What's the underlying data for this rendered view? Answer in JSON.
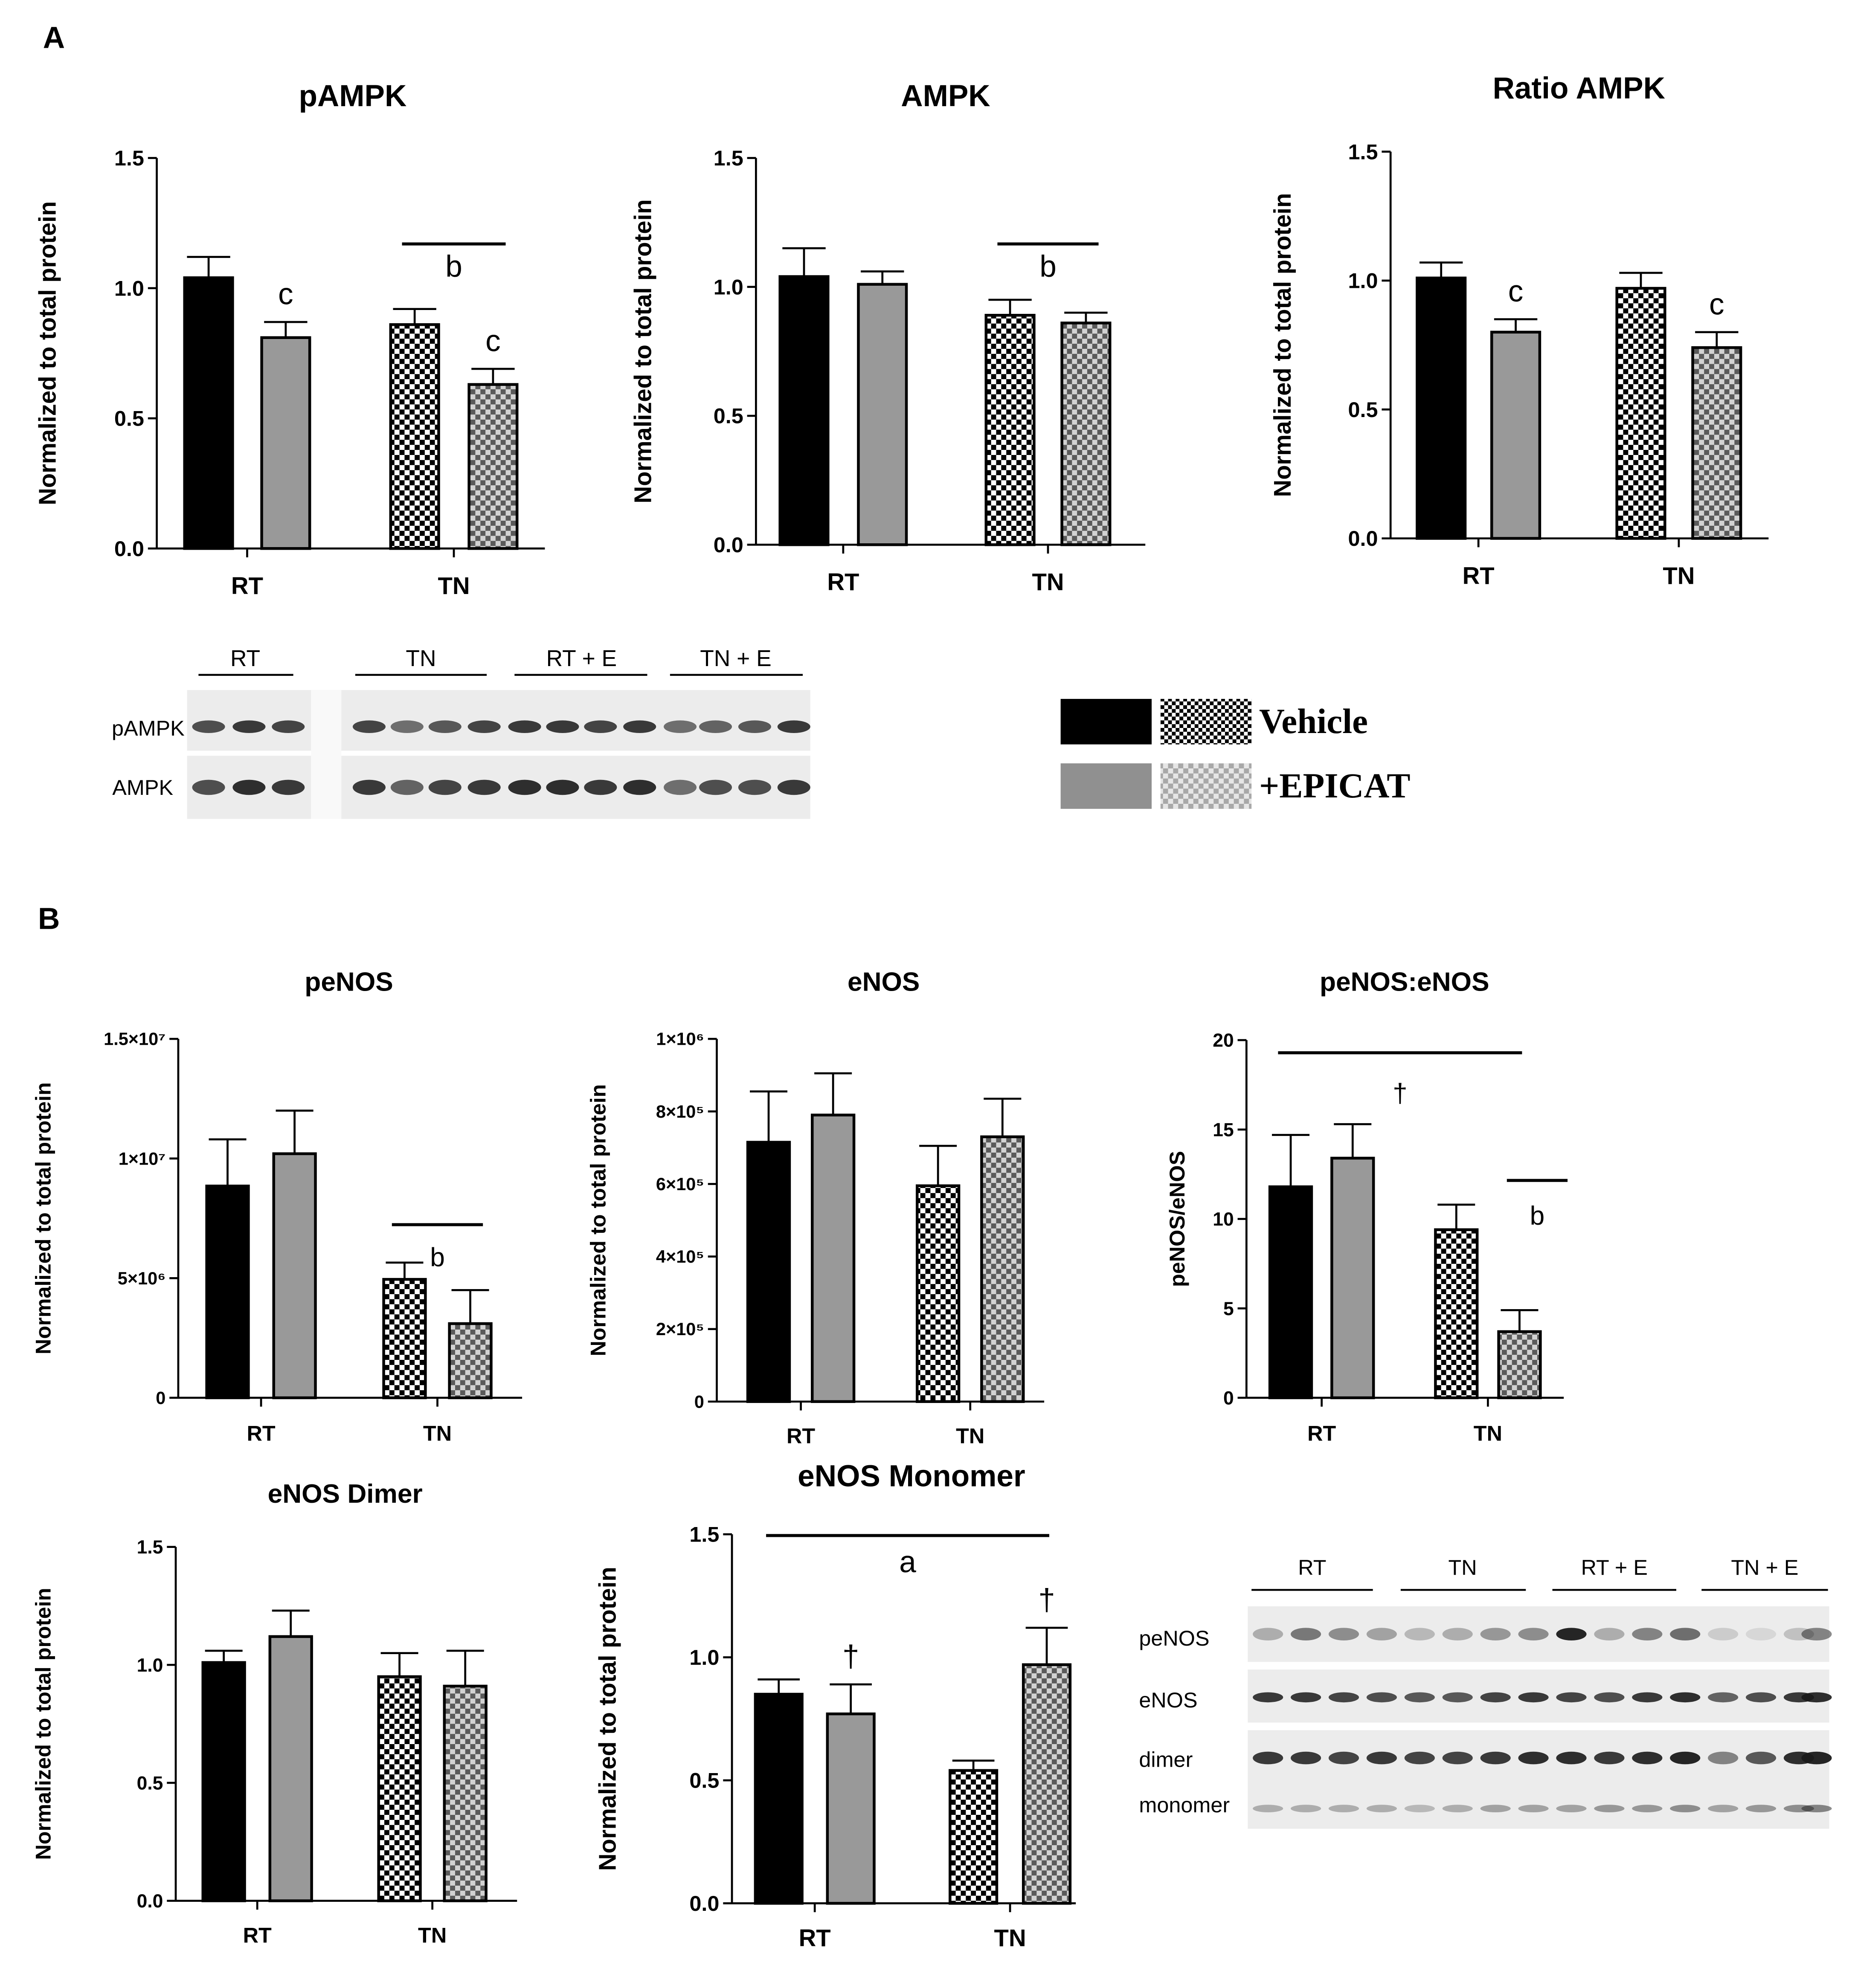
{
  "figure": {
    "panel_labels": [
      "A",
      "B"
    ],
    "legend": {
      "vehicle_label": "Vehicle",
      "epicat_label": "+EPICAT",
      "colors": {
        "vehicle": "#000000",
        "epicat": "#909090"
      }
    },
    "blot_a": {
      "groups": [
        "RT",
        "TN",
        "RT + E",
        "TN + E"
      ],
      "row_labels": [
        "pAMPK",
        "AMPK"
      ]
    },
    "blot_b": {
      "groups": [
        "RT",
        "TN",
        "RT + E",
        "TN + E"
      ],
      "row_labels": [
        "peNOS",
        "eNOS",
        "dimer",
        "monomer"
      ]
    }
  },
  "chart_data": [
    {
      "id": "pampk",
      "type": "bar",
      "title": "pAMPK",
      "ylabel": "Normalized to total protein",
      "ylim": [
        0,
        1.5
      ],
      "yticks": [
        "0.0",
        "0.5",
        "1.0",
        "1.5"
      ],
      "ytick_values": [
        0,
        0.5,
        1.0,
        1.5
      ],
      "categories": [
        "RT",
        "TN"
      ],
      "series": [
        {
          "name": "Vehicle",
          "values": [
            1.04,
            0.86
          ],
          "errors": [
            0.08,
            0.06
          ]
        },
        {
          "name": "+EPICAT",
          "values": [
            0.81,
            0.63
          ],
          "errors": [
            0.06,
            0.06
          ]
        }
      ],
      "bar_letters": [
        {
          "text": "c",
          "series": 1,
          "category": 0
        },
        {
          "text": "c",
          "series": 1,
          "category": 1
        }
      ],
      "annotations": [
        {
          "text": "b",
          "from_category": 1,
          "to_category": 1
        }
      ]
    },
    {
      "id": "ampk",
      "type": "bar",
      "title": "AMPK",
      "ylabel": "Normalized to total protein",
      "ylim": [
        0,
        1.5
      ],
      "yticks": [
        "0.0",
        "0.5",
        "1.0",
        "1.5"
      ],
      "ytick_values": [
        0,
        0.5,
        1.0,
        1.5
      ],
      "categories": [
        "RT",
        "TN"
      ],
      "series": [
        {
          "name": "Vehicle",
          "values": [
            1.04,
            0.89
          ],
          "errors": [
            0.11,
            0.06
          ]
        },
        {
          "name": "+EPICAT",
          "values": [
            1.01,
            0.86
          ],
          "errors": [
            0.05,
            0.04
          ]
        }
      ],
      "bar_letters": [],
      "annotations": [
        {
          "text": "b",
          "from_category": 1,
          "to_category": 1
        }
      ]
    },
    {
      "id": "ratio_ampk",
      "type": "bar",
      "title": "Ratio AMPK",
      "ylabel": "Normalized to total protein",
      "ylim": [
        0,
        1.5
      ],
      "yticks": [
        "0.0",
        "0.5",
        "1.0",
        "1.5"
      ],
      "ytick_values": [
        0,
        0.5,
        1.0,
        1.5
      ],
      "categories": [
        "RT",
        "TN"
      ],
      "series": [
        {
          "name": "Vehicle",
          "values": [
            1.01,
            0.97
          ],
          "errors": [
            0.06,
            0.06
          ]
        },
        {
          "name": "+EPICAT",
          "values": [
            0.8,
            0.74
          ],
          "errors": [
            0.05,
            0.06
          ]
        }
      ],
      "bar_letters": [
        {
          "text": "c",
          "series": 1,
          "category": 0
        },
        {
          "text": "c",
          "series": 1,
          "category": 1
        }
      ],
      "annotations": []
    },
    {
      "id": "penos",
      "type": "bar",
      "title": "peNOS",
      "ylabel": "Normalized to total protein",
      "ylim": [
        0,
        15000000
      ],
      "yticks": [
        "0",
        "5×10⁶",
        "1×10⁷",
        "1.5×10⁷"
      ],
      "ytick_values": [
        0,
        5000000,
        10000000,
        15000000
      ],
      "categories": [
        "RT",
        "TN"
      ],
      "series": [
        {
          "name": "Vehicle",
          "values": [
            8850000,
            4950000
          ],
          "errors": [
            1950000,
            700000
          ]
        },
        {
          "name": "+EPICAT",
          "values": [
            10200000,
            3100000
          ],
          "errors": [
            1800000,
            1400000
          ]
        }
      ],
      "bar_letters": [],
      "annotations": [
        {
          "text": "b",
          "from_category": 1,
          "to_category": 1
        }
      ]
    },
    {
      "id": "enos",
      "type": "bar",
      "title": "eNOS",
      "ylabel": "Normalized to total protein",
      "ylim": [
        0,
        1000000
      ],
      "yticks": [
        "0",
        "2×10⁵",
        "4×10⁵",
        "6×10⁵",
        "8×10⁵",
        "1×10⁶"
      ],
      "ytick_values": [
        0,
        200000,
        400000,
        600000,
        800000,
        1000000
      ],
      "categories": [
        "RT",
        "TN"
      ],
      "series": [
        {
          "name": "Vehicle",
          "values": [
            715000,
            595000
          ],
          "errors": [
            140000,
            110000
          ]
        },
        {
          "name": "+EPICAT",
          "values": [
            790000,
            730000
          ],
          "errors": [
            115000,
            105000
          ]
        }
      ],
      "bar_letters": [],
      "annotations": []
    },
    {
      "id": "penos_enos",
      "type": "bar",
      "title": "peNOS:eNOS",
      "ylabel": "peNOS/eNOS",
      "ylim": [
        0,
        20
      ],
      "yticks": [
        "0",
        "5",
        "10",
        "15",
        "20"
      ],
      "ytick_values": [
        0,
        5,
        10,
        15,
        20
      ],
      "categories": [
        "RT",
        "TN"
      ],
      "series": [
        {
          "name": "Vehicle",
          "values": [
            11.8,
            9.4
          ],
          "errors": [
            2.9,
            1.4
          ]
        },
        {
          "name": "+EPICAT",
          "values": [
            13.4,
            3.7
          ],
          "errors": [
            1.9,
            1.2
          ]
        }
      ],
      "bar_letters": [],
      "annotations": [
        {
          "text": "†",
          "from_category": 0,
          "to_category": 1
        },
        {
          "text": "b",
          "from_category": 1,
          "to_category": 1,
          "series": 1
        }
      ]
    },
    {
      "id": "enos_dimer",
      "type": "bar",
      "title": "eNOS Dimer",
      "ylabel": "Normalized to total protein",
      "ylim": [
        0,
        1.5
      ],
      "yticks": [
        "0.0",
        "0.5",
        "1.0",
        "1.5"
      ],
      "ytick_values": [
        0,
        0.5,
        1.0,
        1.5
      ],
      "categories": [
        "RT",
        "TN"
      ],
      "series": [
        {
          "name": "Vehicle",
          "values": [
            1.01,
            0.95
          ],
          "errors": [
            0.05,
            0.1
          ]
        },
        {
          "name": "+EPICAT",
          "values": [
            1.12,
            0.91
          ],
          "errors": [
            0.11,
            0.15
          ]
        }
      ],
      "bar_letters": [],
      "annotations": []
    },
    {
      "id": "enos_monomer",
      "type": "bar",
      "title": "eNOS Monomer",
      "ylabel": "Normalized to total protein",
      "ylim": [
        0,
        1.5
      ],
      "yticks": [
        "0.0",
        "0.5",
        "1.0",
        "1.5"
      ],
      "ytick_values": [
        0,
        0.5,
        1.0,
        1.5
      ],
      "categories": [
        "RT",
        "TN"
      ],
      "series": [
        {
          "name": "Vehicle",
          "values": [
            0.85,
            0.54
          ],
          "errors": [
            0.06,
            0.04
          ]
        },
        {
          "name": "+EPICAT",
          "values": [
            0.77,
            0.97
          ],
          "errors": [
            0.12,
            0.15
          ]
        }
      ],
      "bar_letters": [
        {
          "text": "†",
          "series": 1,
          "category": 0
        },
        {
          "text": "†",
          "series": 1,
          "category": 1
        }
      ],
      "annotations": [
        {
          "text": "a",
          "from_category": 0,
          "to_category": 1
        }
      ]
    }
  ]
}
